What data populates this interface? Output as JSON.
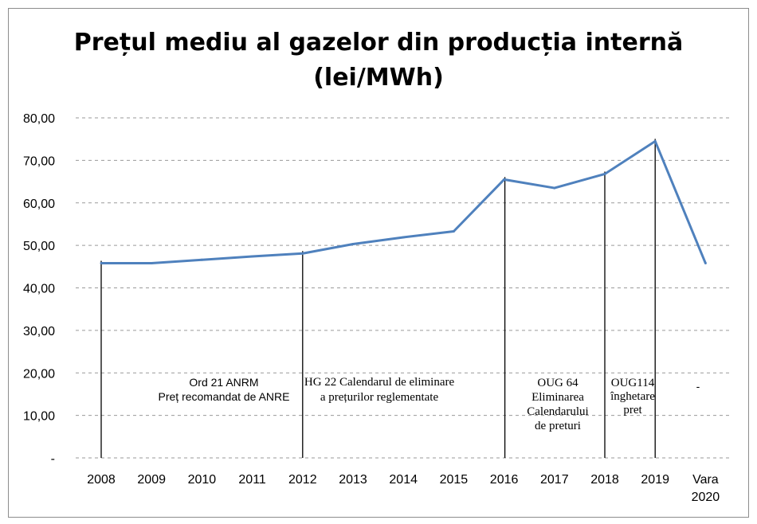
{
  "chart_data": {
    "type": "line",
    "title": "Prețul mediu al gazelor din producția internă",
    "subtitle": "(lei/MWh)",
    "categories": [
      "2008",
      "2009",
      "2010",
      "2011",
      "2012",
      "2013",
      "2014",
      "2015",
      "2016",
      "2017",
      "2018",
      "2019",
      "Vara 2020"
    ],
    "series": [
      {
        "values": [
          45.8,
          45.8,
          46.6,
          47.4,
          48.1,
          50.3,
          51.9,
          53.3,
          65.5,
          63.5,
          66.8,
          74.5,
          45.8
        ]
      }
    ],
    "y_ticks": [
      "-",
      "10,00",
      "20,00",
      "30,00",
      "40,00",
      "50,00",
      "60,00",
      "70,00",
      "80,00"
    ],
    "ylim": [
      0,
      80
    ],
    "grid": true,
    "line_color": "#4f81bd",
    "annotations": [
      {
        "category": "2008",
        "lines": [
          "Ord 21 ANRM",
          "Preț recomandat de ANRE"
        ]
      },
      {
        "category": "2012",
        "lines": [
          "HG 22 Calendarul de eliminare",
          "a prețurilor reglementate"
        ]
      },
      {
        "category": "2016",
        "lines": [
          "OUG 64",
          "Eliminarea",
          "Calendarului",
          "de preturi"
        ]
      },
      {
        "category": "2018",
        "lines": [
          "OUG114",
          "înghetare",
          "pret"
        ]
      },
      {
        "category": "2019",
        "lines": [
          "-"
        ]
      }
    ]
  }
}
